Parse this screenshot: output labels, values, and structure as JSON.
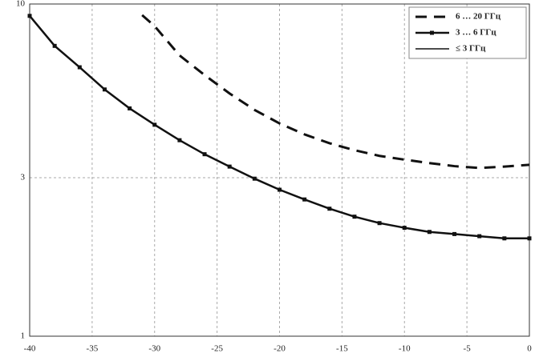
{
  "chart_data": {
    "type": "line",
    "xlim": [
      -40,
      0
    ],
    "xticks": [
      -40,
      -35,
      -30,
      -25,
      -20,
      -15,
      -10,
      -5,
      0
    ],
    "ylim": [
      1,
      10
    ],
    "yticks": [
      1,
      3,
      10
    ],
    "log_y": true,
    "grid": true,
    "legend": "top-right",
    "series": [
      {
        "name": "6 … 20 ГГц",
        "color": "#111111",
        "style": "dashed",
        "markers": false,
        "x": [
          -31,
          -30,
          -28,
          -26,
          -24,
          -22,
          -20,
          -18,
          -16,
          -14,
          -12,
          -10,
          -8,
          -6,
          -4,
          -2,
          0
        ],
        "values": [
          9.26,
          8.58,
          7.0,
          6.11,
          5.38,
          4.8,
          4.37,
          4.05,
          3.81,
          3.63,
          3.49,
          3.4,
          3.32,
          3.25,
          3.21,
          3.24,
          3.28
        ]
      },
      {
        "name": "3 … 6 ГГц",
        "color": "#111111",
        "style": "solid",
        "markers": true,
        "x": [
          -40,
          -38,
          -36,
          -34,
          -32,
          -30,
          -28,
          -26,
          -24,
          -22,
          -20,
          -18,
          -16,
          -14,
          -12,
          -10,
          -8,
          -6,
          -4,
          -2,
          0
        ],
        "values": [
          9.21,
          7.48,
          6.45,
          5.53,
          4.85,
          4.33,
          3.89,
          3.53,
          3.24,
          2.98,
          2.76,
          2.58,
          2.42,
          2.29,
          2.19,
          2.12,
          2.06,
          2.03,
          2.0,
          1.97,
          1.97
        ]
      },
      {
        "name": "≤ 3 ГГц",
        "color": "#111111",
        "style": "thin",
        "markers": false,
        "x": [],
        "values": []
      }
    ]
  }
}
